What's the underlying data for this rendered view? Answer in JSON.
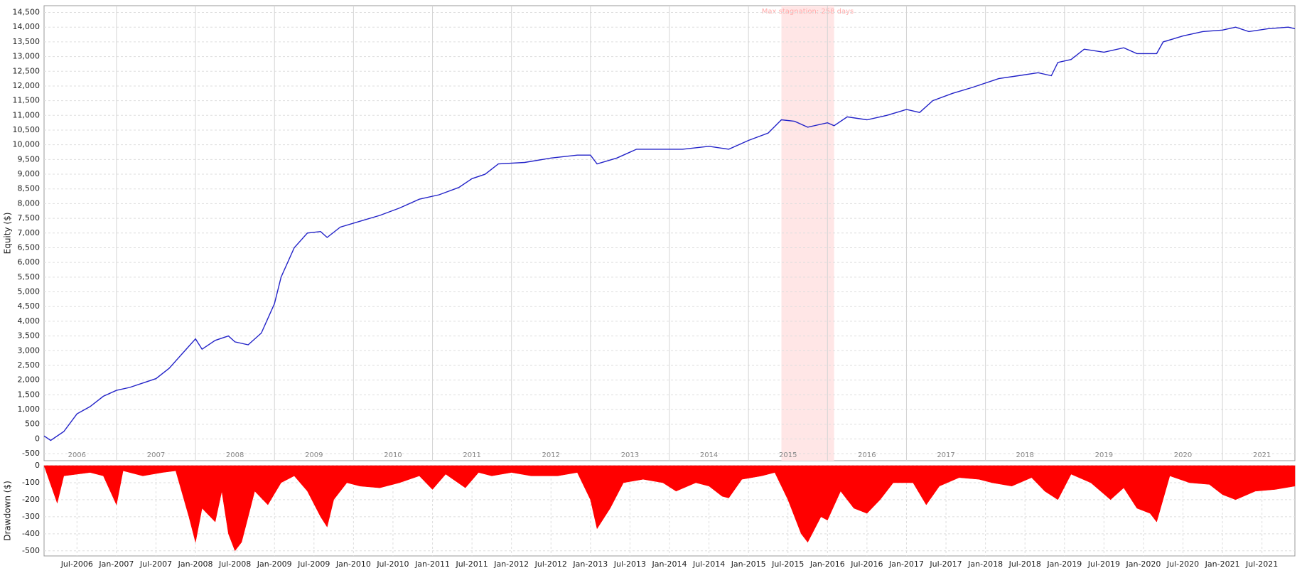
{
  "chart_data": [
    {
      "type": "line",
      "y_label": "Equity ($)",
      "color": "#2323c8",
      "xlim": [
        "2006-02",
        "2021-12"
      ],
      "ylim": [
        -740,
        14730
      ],
      "yticks": [
        -500,
        0,
        500,
        {
          "value": 1000,
          "label": "1,000"
        },
        {
          "value": 1500,
          "label": "1,500"
        },
        {
          "value": 2000,
          "label": "2,000"
        },
        {
          "value": 2500,
          "label": "2,500"
        },
        {
          "value": 3000,
          "label": "3,000"
        },
        {
          "value": 3500,
          "label": "3,500"
        },
        {
          "value": 4000,
          "label": "4,000"
        },
        {
          "value": 4500,
          "label": "4,500"
        },
        {
          "value": 5000,
          "label": "5,000"
        },
        {
          "value": 5500,
          "label": "5,500"
        },
        {
          "value": 6000,
          "label": "6,000"
        },
        {
          "value": 6500,
          "label": "6,500"
        },
        {
          "value": 7000,
          "label": "7,000"
        },
        {
          "value": 7500,
          "label": "7,500"
        },
        {
          "value": 8000,
          "label": "8,000"
        },
        {
          "value": 8500,
          "label": "8,500"
        },
        {
          "value": 9000,
          "label": "9,000"
        },
        {
          "value": 9500,
          "label": "9,500"
        },
        {
          "value": 10000,
          "label": "10,000"
        },
        {
          "value": 10500,
          "label": "10,500"
        },
        {
          "value": 11000,
          "label": "11,000"
        },
        {
          "value": 11500,
          "label": "11,500"
        },
        {
          "value": 12000,
          "label": "12,000"
        },
        {
          "value": 12500,
          "label": "12,500"
        },
        {
          "value": 13000,
          "label": "13,000"
        },
        {
          "value": 13500,
          "label": "13,500"
        },
        {
          "value": 14000,
          "label": "14,000"
        },
        {
          "value": 14500,
          "label": "14,500"
        }
      ],
      "xticks": [
        2006,
        2007,
        2008,
        2009,
        2010,
        2011,
        2012,
        2013,
        2014,
        2015,
        2016,
        2017,
        2018,
        2019,
        2020,
        2021
      ],
      "grid": true,
      "highlight": {
        "x": [
          "2015-06",
          "2016-02"
        ],
        "label": "Max stagnation: 258 days",
        "color": "#ffe6e6"
      },
      "x": [
        "2006-02",
        "2006-03",
        "2006-05",
        "2006-07",
        "2006-09",
        "2006-11",
        "2007-01",
        "2007-03",
        "2007-05",
        "2007-07",
        "2007-09",
        "2007-11",
        "2008-01",
        "2008-02",
        "2008-04",
        "2008-06",
        "2008-07",
        "2008-09",
        "2008-11",
        "2009-01",
        "2009-02",
        "2009-04",
        "2009-06",
        "2009-08",
        "2009-09",
        "2009-11",
        "2010-02",
        "2010-05",
        "2010-08",
        "2010-11",
        "2011-02",
        "2011-05",
        "2011-07",
        "2011-09",
        "2011-11",
        "2012-03",
        "2012-07",
        "2012-11",
        "2013-01",
        "2013-02",
        "2013-05",
        "2013-08",
        "2013-11",
        "2014-03",
        "2014-07",
        "2014-10",
        "2015-01",
        "2015-04",
        "2015-06",
        "2015-08",
        "2015-10",
        "2016-01",
        "2016-02",
        "2016-04",
        "2016-07",
        "2016-10",
        "2017-01",
        "2017-03",
        "2017-05",
        "2017-08",
        "2017-11",
        "2018-03",
        "2018-06",
        "2018-09",
        "2018-11",
        "2018-12",
        "2019-02",
        "2019-04",
        "2019-07",
        "2019-10",
        "2019-12",
        "2020-03",
        "2020-04",
        "2020-07",
        "2020-10",
        "2021-01",
        "2021-03",
        "2021-05",
        "2021-08",
        "2021-11",
        "2021-12"
      ],
      "values": [
        100,
        -50,
        250,
        850,
        1100,
        1450,
        1650,
        1750,
        1900,
        2050,
        2400,
        2900,
        3400,
        3050,
        3350,
        3500,
        3300,
        3200,
        3600,
        4600,
        5500,
        6500,
        7000,
        7050,
        6850,
        7200,
        7400,
        7600,
        7850,
        8150,
        8300,
        8550,
        8850,
        9000,
        9350,
        9400,
        9550,
        9650,
        9650,
        9350,
        9550,
        9850,
        9850,
        9850,
        9950,
        9850,
        10150,
        10400,
        10850,
        10800,
        10600,
        10750,
        10650,
        10950,
        10850,
        11000,
        11200,
        11100,
        11500,
        11750,
        11950,
        12250,
        12350,
        12450,
        12350,
        12800,
        12900,
        13250,
        13150,
        13300,
        13100,
        13100,
        13500,
        13700,
        13850,
        13900,
        14000,
        13850,
        13950,
        14000,
        13950
      ]
    },
    {
      "type": "area",
      "y_label": "Drawdown ($)",
      "color": "#ff0000",
      "xlim": [
        "2006-02",
        "2021-12"
      ],
      "ylim": [
        -530,
        0
      ],
      "yticks": [
        -500,
        -400,
        -300,
        -200,
        -100,
        0
      ],
      "grid": true,
      "xticks": [
        {
          "value": "2006-07",
          "label": "Jul-2006"
        },
        {
          "value": "2007-01",
          "label": "Jan-2007"
        },
        {
          "value": "2007-07",
          "label": "Jul-2007"
        },
        {
          "value": "2008-01",
          "label": "Jan-2008"
        },
        {
          "value": "2008-07",
          "label": "Jul-2008"
        },
        {
          "value": "2009-01",
          "label": "Jan-2009"
        },
        {
          "value": "2009-07",
          "label": "Jul-2009"
        },
        {
          "value": "2010-01",
          "label": "Jan-2010"
        },
        {
          "value": "2010-07",
          "label": "Jul-2010"
        },
        {
          "value": "2011-01",
          "label": "Jan-2011"
        },
        {
          "value": "2011-07",
          "label": "Jul-2011"
        },
        {
          "value": "2012-01",
          "label": "Jan-2012"
        },
        {
          "value": "2012-07",
          "label": "Jul-2012"
        },
        {
          "value": "2013-01",
          "label": "Jan-2013"
        },
        {
          "value": "2013-07",
          "label": "Jul-2013"
        },
        {
          "value": "2014-01",
          "label": "Jan-2014"
        },
        {
          "value": "2014-07",
          "label": "Jul-2014"
        },
        {
          "value": "2015-01",
          "label": "Jan-2015"
        },
        {
          "value": "2015-07",
          "label": "Jul-2015"
        },
        {
          "value": "2016-01",
          "label": "Jan-2016"
        },
        {
          "value": "2016-07",
          "label": "Jul-2016"
        },
        {
          "value": "2017-01",
          "label": "Jan-2017"
        },
        {
          "value": "2017-07",
          "label": "Jul-2017"
        },
        {
          "value": "2018-01",
          "label": "Jan-2018"
        },
        {
          "value": "2018-07",
          "label": "Jul-2018"
        },
        {
          "value": "2019-01",
          "label": "Jan-2019"
        },
        {
          "value": "2019-07",
          "label": "Jul-2019"
        },
        {
          "value": "2020-01",
          "label": "Jan-2020"
        },
        {
          "value": "2020-07",
          "label": "Jul-2020"
        },
        {
          "value": "2021-01",
          "label": "Jan-2021"
        },
        {
          "value": "2021-07",
          "label": "Jul-2021"
        }
      ],
      "x": [
        "2006-02",
        "2006-04",
        "2006-05",
        "2006-07",
        "2006-09",
        "2006-11",
        "2007-01",
        "2007-02",
        "2007-05",
        "2007-08",
        "2007-10",
        "2007-12",
        "2008-01",
        "2008-02",
        "2008-04",
        "2008-05",
        "2008-06",
        "2008-07",
        "2008-08",
        "2008-09",
        "2008-10",
        "2008-12",
        "2009-02",
        "2009-04",
        "2009-06",
        "2009-08",
        "2009-09",
        "2009-10",
        "2009-12",
        "2010-02",
        "2010-05",
        "2010-08",
        "2010-11",
        "2011-01",
        "2011-03",
        "2011-06",
        "2011-08",
        "2011-10",
        "2012-01",
        "2012-04",
        "2012-08",
        "2012-11",
        "2013-01",
        "2013-02",
        "2013-04",
        "2013-06",
        "2013-09",
        "2013-12",
        "2014-02",
        "2014-05",
        "2014-07",
        "2014-09",
        "2014-10",
        "2014-12",
        "2015-03",
        "2015-05",
        "2015-07",
        "2015-09",
        "2015-10",
        "2015-12",
        "2016-01",
        "2016-03",
        "2016-05",
        "2016-07",
        "2016-09",
        "2016-11",
        "2017-02",
        "2017-04",
        "2017-06",
        "2017-09",
        "2017-12",
        "2018-02",
        "2018-05",
        "2018-08",
        "2018-10",
        "2018-12",
        "2019-02",
        "2019-05",
        "2019-08",
        "2019-10",
        "2019-12",
        "2020-02",
        "2020-03",
        "2020-05",
        "2020-08",
        "2020-11",
        "2021-01",
        "2021-03",
        "2021-06",
        "2021-09",
        "2021-12"
      ],
      "values": [
        0,
        -220,
        -60,
        -50,
        -40,
        -60,
        -230,
        -30,
        -60,
        -40,
        -30,
        -300,
        -450,
        -250,
        -330,
        -150,
        -400,
        -500,
        -450,
        -300,
        -150,
        -230,
        -100,
        -60,
        -150,
        -300,
        -360,
        -200,
        -100,
        -120,
        -130,
        -100,
        -60,
        -140,
        -50,
        -130,
        -40,
        -60,
        -40,
        -60,
        -60,
        -40,
        -200,
        -370,
        -250,
        -100,
        -80,
        -100,
        -150,
        -100,
        -120,
        -180,
        -190,
        -80,
        -60,
        -40,
        -200,
        -400,
        -450,
        -300,
        -320,
        -150,
        -250,
        -280,
        -200,
        -100,
        -100,
        -230,
        -120,
        -70,
        -80,
        -100,
        -120,
        -70,
        -150,
        -200,
        -50,
        -100,
        -200,
        -130,
        -250,
        -280,
        -330,
        -60,
        -100,
        -110,
        -170,
        -200,
        -150,
        -140,
        -120
      ]
    }
  ]
}
